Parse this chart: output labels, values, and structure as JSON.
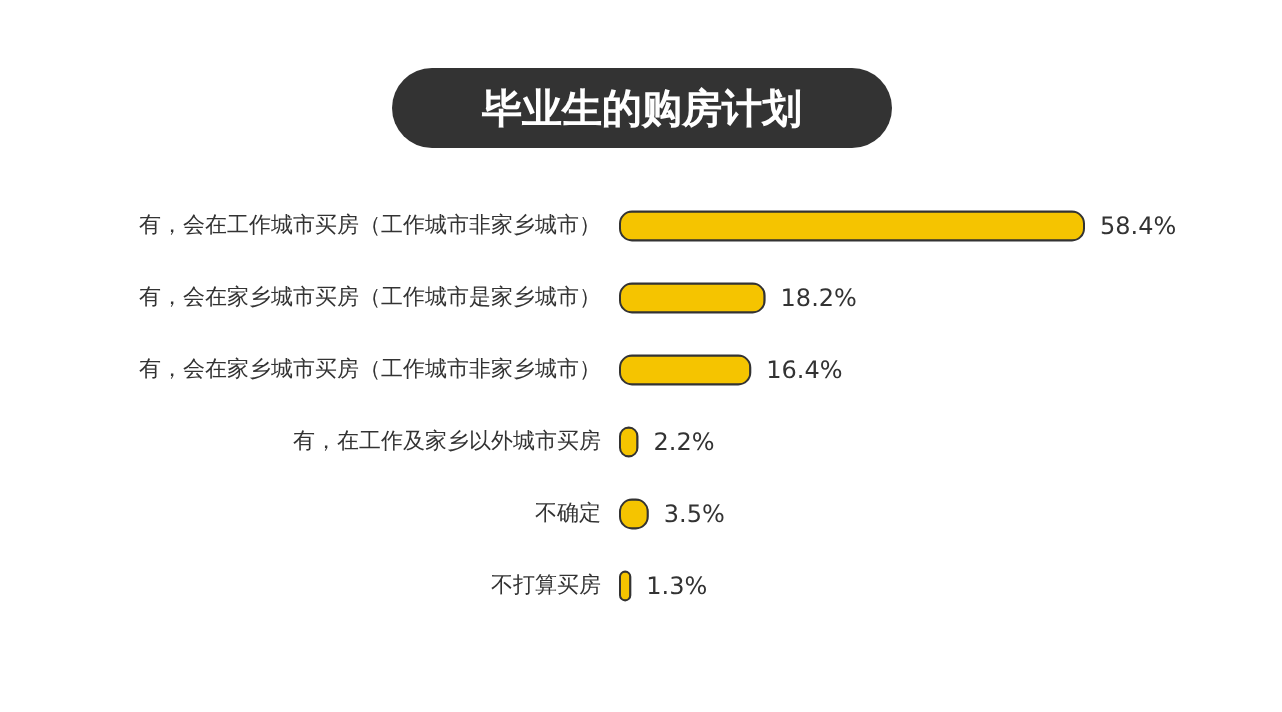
{
  "chart_data": {
    "type": "bar",
    "orientation": "horizontal",
    "title": "毕业生的购房计划",
    "categories": [
      "有，会在工作城市买房（工作城市非家乡城市）",
      "有，会在家乡城市买房（工作城市是家乡城市）",
      "有，会在家乡城市买房（工作城市非家乡城市）",
      "有，在工作及家乡以外城市买房",
      "不确定",
      "不打算买房"
    ],
    "values": [
      58.4,
      18.2,
      16.4,
      2.2,
      3.5,
      1.3
    ],
    "value_labels": [
      "58.4%",
      "18.2%",
      "16.4%",
      "2.2%",
      "3.5%",
      "1.3%"
    ],
    "color": "#f5c400"
  }
}
